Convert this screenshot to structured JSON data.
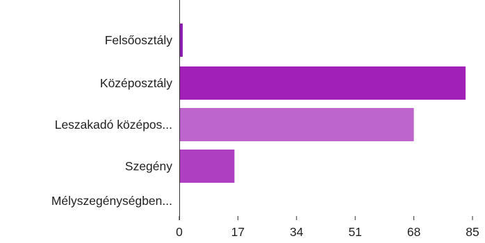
{
  "chart_data": {
    "type": "bar",
    "orientation": "horizontal",
    "categories": [
      "Felsőosztály",
      "Középosztály",
      "Leszakadó középos...",
      "Szegény",
      "Mélyszegénységben..."
    ],
    "values": [
      1,
      83,
      68,
      16,
      0
    ],
    "bar_colors": [
      "#8b1fb0",
      "#a020b8",
      "#bd65cd",
      "#ad3fc0",
      "#ad3fc0"
    ],
    "title": "",
    "xlabel": "",
    "ylabel": "",
    "xlim": [
      0,
      85
    ],
    "xticks": [
      "0",
      "17",
      "34",
      "51",
      "68",
      "85"
    ],
    "grid": false,
    "legend": "none"
  }
}
